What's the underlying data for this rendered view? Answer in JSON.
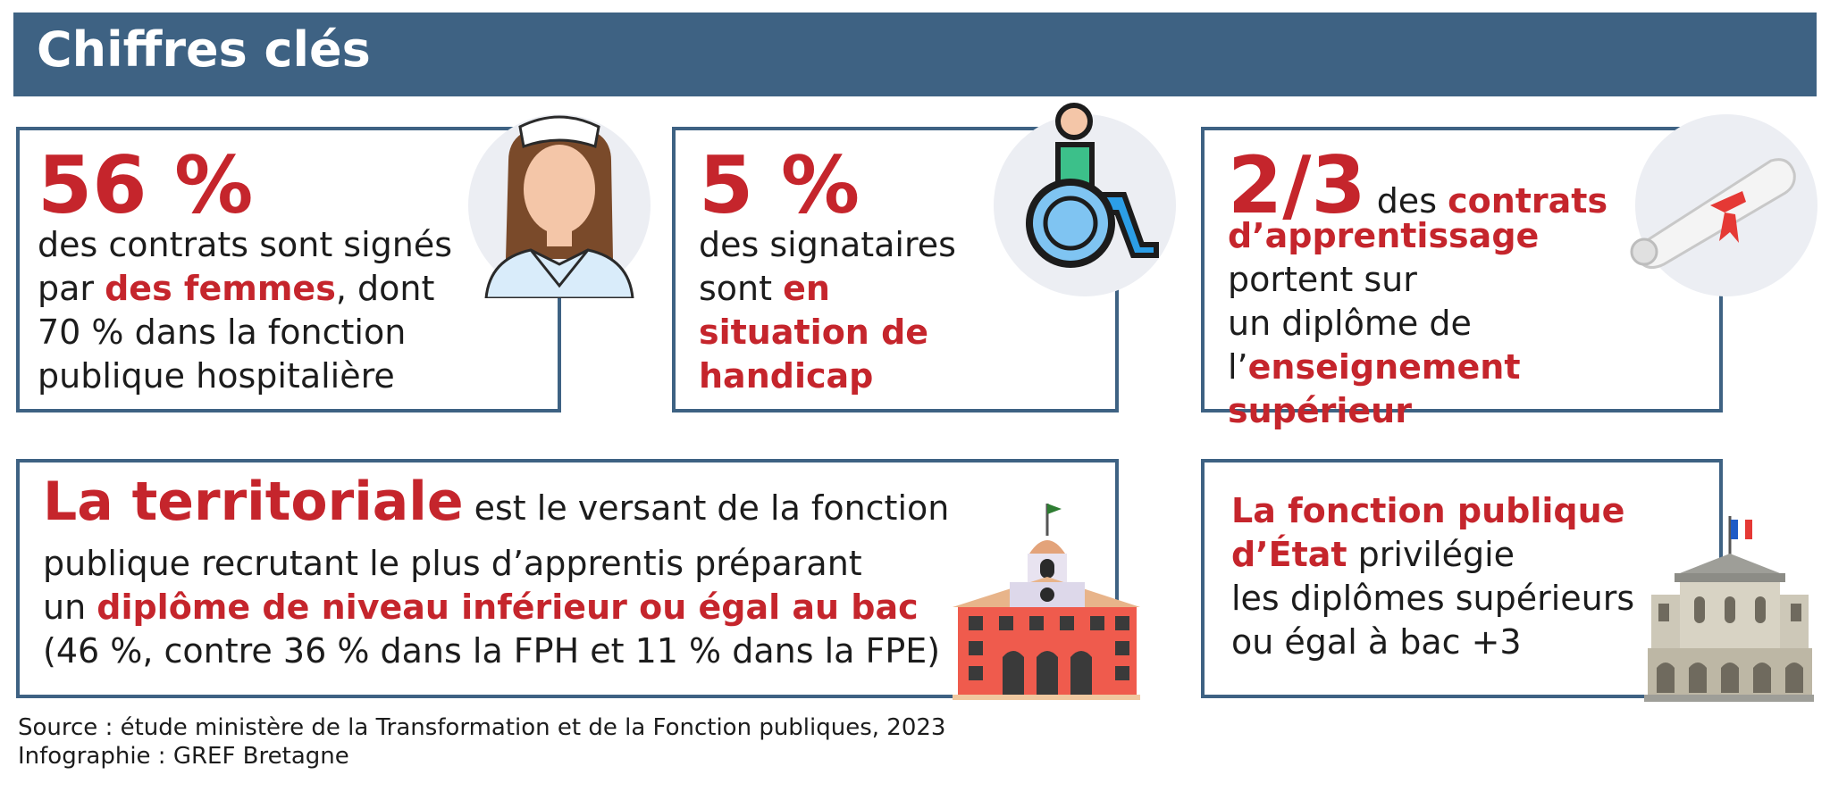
{
  "header": {
    "title": "Chiffres clés"
  },
  "card1": {
    "value": "56 %",
    "line1": "des contrats sont signés",
    "line2_pre": "par ",
    "line2_em": "des femmes",
    "line2_post": ", dont",
    "line3": "70 % dans la fonction",
    "line4": "publique hospitalière",
    "icon": "nurse-icon"
  },
  "card2": {
    "value": "5 %",
    "line1": "des signataires",
    "line2_pre": "sont ",
    "line2_em": "en",
    "line3_em": "situation de",
    "line4_em": "handicap",
    "icon": "wheelchair-icon"
  },
  "card3": {
    "value": "2/3",
    "line1_pre": " des ",
    "line1_em": "contrats",
    "line2_em": "d’apprentissage",
    "line3": "portent sur",
    "line4": "un diplôme de",
    "line5_pre": "l’",
    "line5_em": "enseignement supérieur",
    "icon": "diploma-icon"
  },
  "card4": {
    "title": "La territoriale",
    "line1_post": " est le versant de la fonction",
    "line2": "publique recrutant le plus d’apprentis préparant",
    "line3_pre": "un ",
    "line3_em": "diplôme de niveau inférieur ou égal au bac",
    "line4": "(46 %, contre 36 % dans la FPH et 11 % dans la FPE)",
    "icon": "town-hall-icon"
  },
  "card5": {
    "line1_em": "La fonction publique",
    "line2_em": "d’État",
    "line2_post": " privilégie",
    "line3": "les diplômes supérieurs",
    "line4": "ou égal à bac +3",
    "icon": "government-building-icon"
  },
  "footer": {
    "source": "Source : étude ministère de la Transformation et de la Fonction publiques, 2023",
    "credit": "Infographie : GREF Bretagne"
  },
  "colors": {
    "accent": "#c5252c",
    "primary": "#3e6283"
  }
}
